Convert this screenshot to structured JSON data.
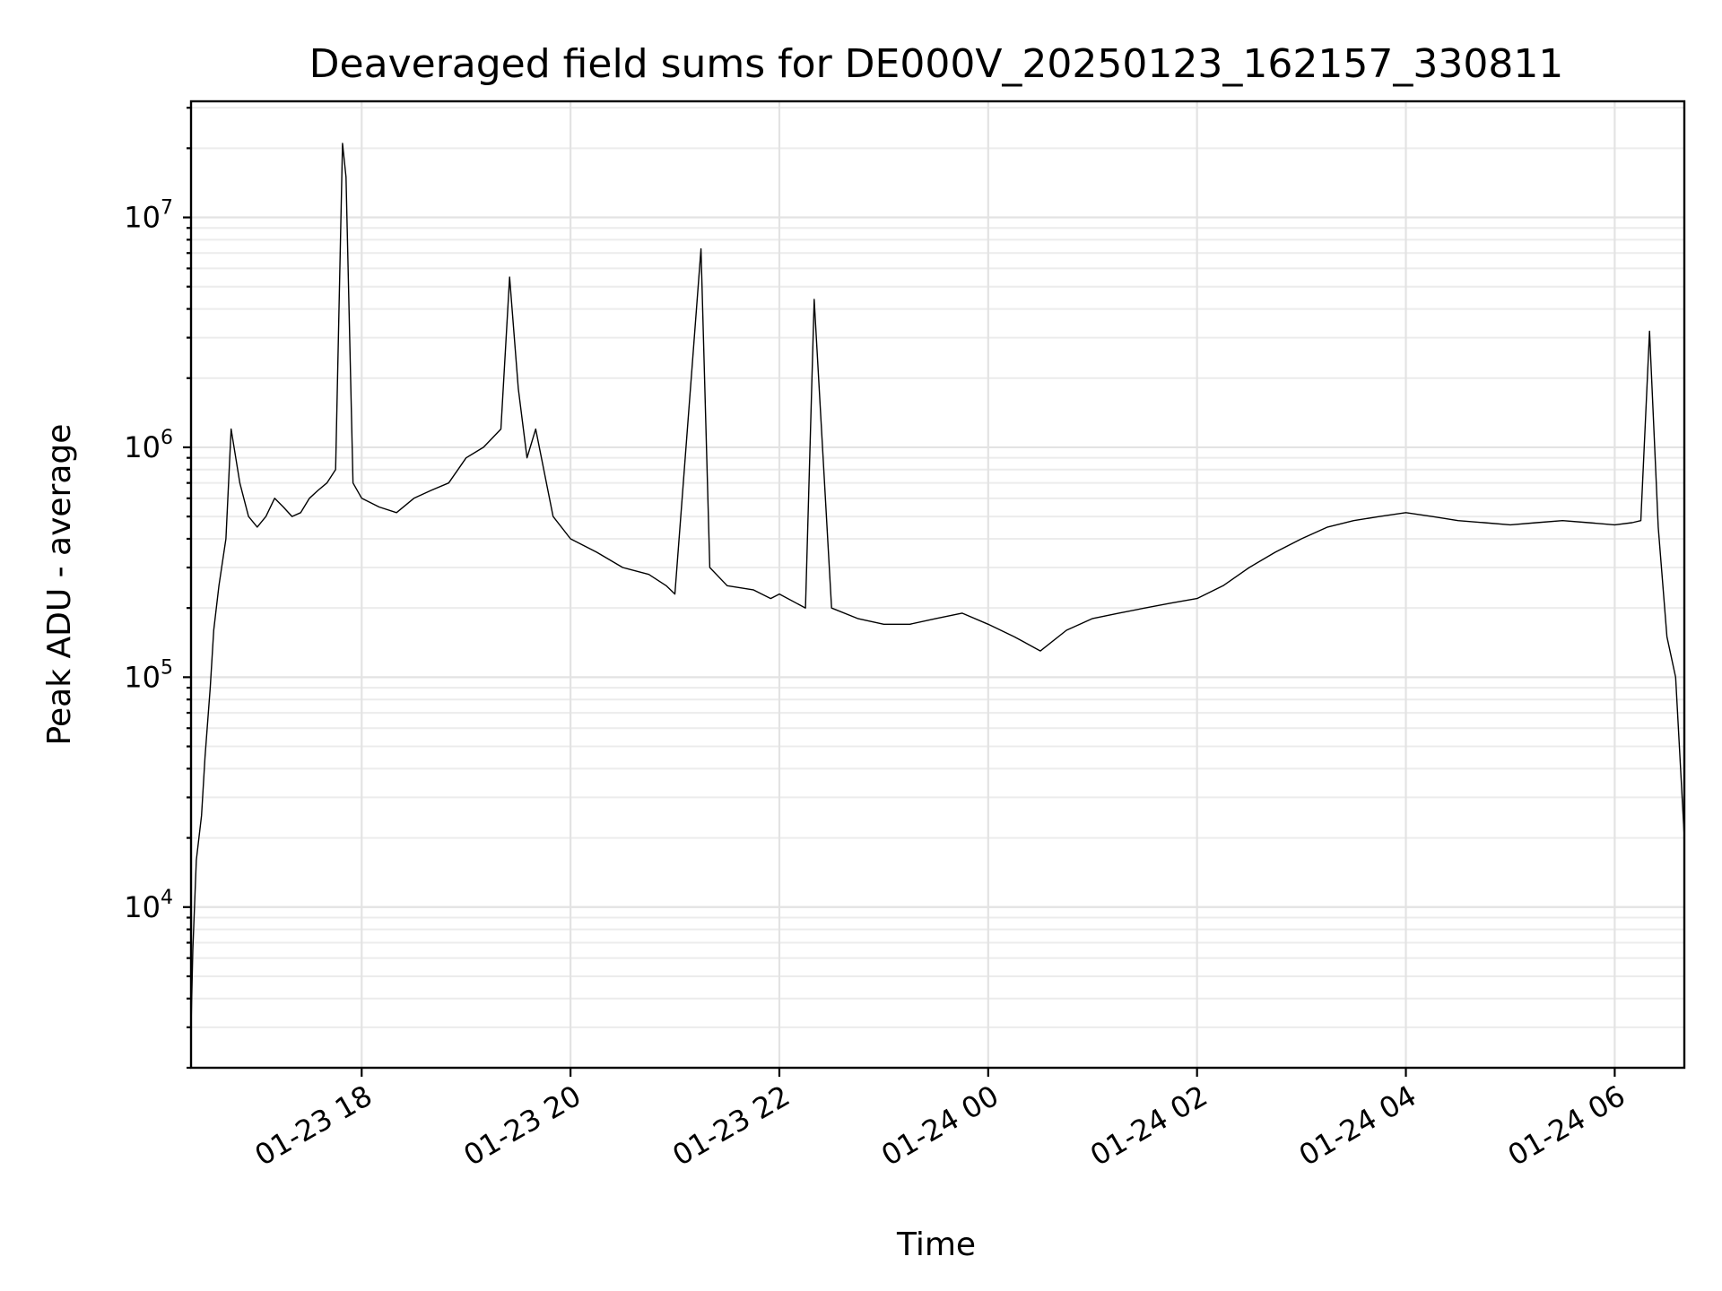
{
  "chart_data": {
    "type": "line",
    "title": "Deaveraged field sums for DE000V_20250123_162157_330811",
    "xlabel": "Time",
    "ylabel": "Peak ADU - average",
    "x_start": "2025-01-23 16:21:57",
    "x_end": "2025-01-24 06:40",
    "xlim": [
      "2025-01-23 16:21:57",
      "2025-01-24 06:40"
    ],
    "yscale": "log",
    "ylim": [
      2000,
      32000000
    ],
    "grid": true,
    "x_ticks": [
      {
        "value": "2025-01-23 18:00",
        "label": "01-23 18"
      },
      {
        "value": "2025-01-23 20:00",
        "label": "01-23 20"
      },
      {
        "value": "2025-01-23 22:00",
        "label": "01-23 22"
      },
      {
        "value": "2025-01-24 00:00",
        "label": "01-24 00"
      },
      {
        "value": "2025-01-24 02:00",
        "label": "01-24 02"
      },
      {
        "value": "2025-01-24 04:00",
        "label": "01-24 04"
      },
      {
        "value": "2025-01-24 06:00",
        "label": "01-24 06"
      }
    ],
    "y_ticks": [
      {
        "value": 10000,
        "base": "10",
        "exp": "4"
      },
      {
        "value": 100000,
        "base": "10",
        "exp": "5"
      },
      {
        "value": 1000000,
        "base": "10",
        "exp": "6"
      },
      {
        "value": 10000000,
        "base": "10",
        "exp": "7"
      }
    ],
    "series": [
      {
        "color": "#000000",
        "x": [
          "2025-01-23 16:21:57",
          "2025-01-23 16:23",
          "2025-01-23 16:25",
          "2025-01-23 16:28",
          "2025-01-23 16:30",
          "2025-01-23 16:33",
          "2025-01-23 16:35",
          "2025-01-23 16:38",
          "2025-01-23 16:42",
          "2025-01-23 16:45",
          "2025-01-23 16:50",
          "2025-01-23 16:55",
          "2025-01-23 17:00",
          "2025-01-23 17:05",
          "2025-01-23 17:10",
          "2025-01-23 17:15",
          "2025-01-23 17:20",
          "2025-01-23 17:25",
          "2025-01-23 17:30",
          "2025-01-23 17:35",
          "2025-01-23 17:40",
          "2025-01-23 17:45",
          "2025-01-23 17:49",
          "2025-01-23 17:51",
          "2025-01-23 17:55",
          "2025-01-23 18:00",
          "2025-01-23 18:10",
          "2025-01-23 18:20",
          "2025-01-23 18:30",
          "2025-01-23 18:40",
          "2025-01-23 18:50",
          "2025-01-23 19:00",
          "2025-01-23 19:10",
          "2025-01-23 19:20",
          "2025-01-23 19:25",
          "2025-01-23 19:30",
          "2025-01-23 19:35",
          "2025-01-23 19:40",
          "2025-01-23 19:50",
          "2025-01-23 20:00",
          "2025-01-23 20:15",
          "2025-01-23 20:30",
          "2025-01-23 20:45",
          "2025-01-23 20:55",
          "2025-01-23 21:00",
          "2025-01-23 21:10",
          "2025-01-23 21:15",
          "2025-01-23 21:20",
          "2025-01-23 21:30",
          "2025-01-23 21:45",
          "2025-01-23 21:55",
          "2025-01-23 22:00",
          "2025-01-23 22:15",
          "2025-01-23 22:20",
          "2025-01-23 22:30",
          "2025-01-23 22:45",
          "2025-01-23 23:00",
          "2025-01-23 23:15",
          "2025-01-23 23:30",
          "2025-01-23 23:45",
          "2025-01-24 00:00",
          "2025-01-24 00:15",
          "2025-01-24 00:30",
          "2025-01-24 00:45",
          "2025-01-24 01:00",
          "2025-01-24 01:15",
          "2025-01-24 01:30",
          "2025-01-24 01:45",
          "2025-01-24 02:00",
          "2025-01-24 02:15",
          "2025-01-24 02:30",
          "2025-01-24 02:45",
          "2025-01-24 03:00",
          "2025-01-24 03:15",
          "2025-01-24 03:30",
          "2025-01-24 03:45",
          "2025-01-24 04:00",
          "2025-01-24 04:15",
          "2025-01-24 04:30",
          "2025-01-24 04:45",
          "2025-01-24 05:00",
          "2025-01-24 05:15",
          "2025-01-24 05:30",
          "2025-01-24 05:45",
          "2025-01-24 06:00",
          "2025-01-24 06:10",
          "2025-01-24 06:15",
          "2025-01-24 06:20",
          "2025-01-24 06:25",
          "2025-01-24 06:30",
          "2025-01-24 06:35",
          "2025-01-24 06:40"
        ],
        "y": [
          3000,
          6500,
          16000,
          25000,
          45000,
          90000,
          160000,
          250000,
          400000,
          1200000,
          700000,
          500000,
          450000,
          500000,
          600000,
          550000,
          500000,
          520000,
          600000,
          650000,
          700000,
          800000,
          21000000,
          15000000,
          700000,
          600000,
          550000,
          520000,
          600000,
          650000,
          700000,
          900000,
          1000000,
          1200000,
          5500000,
          1800000,
          900000,
          1200000,
          500000,
          400000,
          350000,
          300000,
          280000,
          250000,
          230000,
          2300000,
          7300000,
          300000,
          250000,
          240000,
          220000,
          230000,
          200000,
          4400000,
          200000,
          180000,
          170000,
          170000,
          180000,
          190000,
          170000,
          150000,
          130000,
          160000,
          180000,
          190000,
          200000,
          210000,
          220000,
          250000,
          300000,
          350000,
          400000,
          450000,
          480000,
          500000,
          520000,
          500000,
          480000,
          470000,
          460000,
          470000,
          480000,
          470000,
          460000,
          470000,
          480000,
          3200000,
          450000,
          150000,
          100000,
          20000
        ]
      }
    ]
  }
}
